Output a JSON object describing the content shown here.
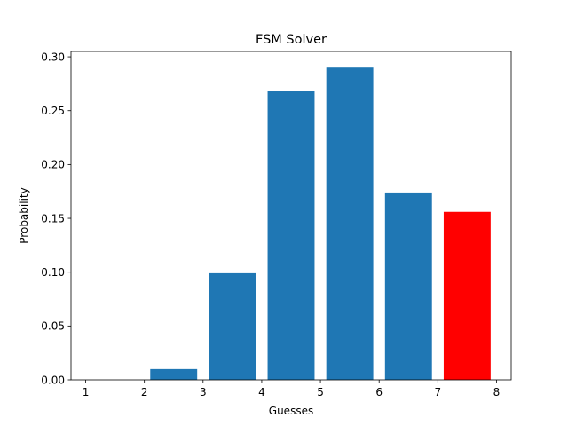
{
  "chart_data": {
    "type": "bar",
    "title": "FSM Solver",
    "xlabel": "Guesses",
    "ylabel": "Probability",
    "xlim": [
      0.75,
      8.25
    ],
    "ylim": [
      0,
      0.305
    ],
    "xticks": [
      1,
      2,
      3,
      4,
      5,
      6,
      7,
      8
    ],
    "yticks": [
      0.0,
      0.05,
      0.1,
      0.15,
      0.2,
      0.25,
      0.3
    ],
    "ytick_labels": [
      "0.00",
      "0.05",
      "0.10",
      "0.15",
      "0.20",
      "0.25",
      "0.30"
    ],
    "bar_width": 0.8,
    "bars": [
      {
        "x": 1.5,
        "value": 0.0,
        "color": "#1f77b4"
      },
      {
        "x": 2.5,
        "value": 0.01,
        "color": "#1f77b4"
      },
      {
        "x": 3.5,
        "value": 0.099,
        "color": "#1f77b4"
      },
      {
        "x": 4.5,
        "value": 0.268,
        "color": "#1f77b4"
      },
      {
        "x": 5.5,
        "value": 0.29,
        "color": "#1f77b4"
      },
      {
        "x": 6.5,
        "value": 0.174,
        "color": "#1f77b4"
      },
      {
        "x": 7.5,
        "value": 0.156,
        "color": "#ff0000"
      }
    ],
    "grid": false,
    "legend": false
  }
}
